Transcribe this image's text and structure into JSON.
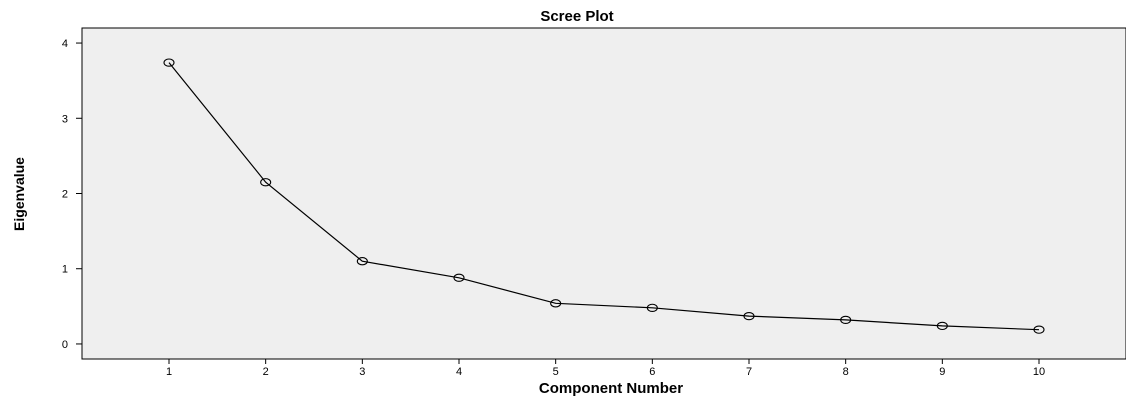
{
  "chart_data": {
    "type": "line",
    "title": "Scree Plot",
    "xlabel": "Component Number",
    "ylabel": "Eigenvalue",
    "x": [
      1,
      2,
      3,
      4,
      5,
      6,
      7,
      8,
      9,
      10
    ],
    "y": [
      3.74,
      2.15,
      1.1,
      0.88,
      0.54,
      0.48,
      0.37,
      0.32,
      0.24,
      0.19
    ],
    "xticks": [
      "1",
      "2",
      "3",
      "4",
      "5",
      "6",
      "7",
      "8",
      "9",
      "10"
    ],
    "yticks": [
      "0",
      "1",
      "2",
      "3",
      "4"
    ],
    "xlim": [
      0.1,
      10.9
    ],
    "ylim": [
      -0.2,
      4.2
    ],
    "grid": false,
    "legend": "none",
    "colors": {
      "plot_background": "#efefef",
      "line": "#000000",
      "marker_edge": "#000000"
    }
  }
}
